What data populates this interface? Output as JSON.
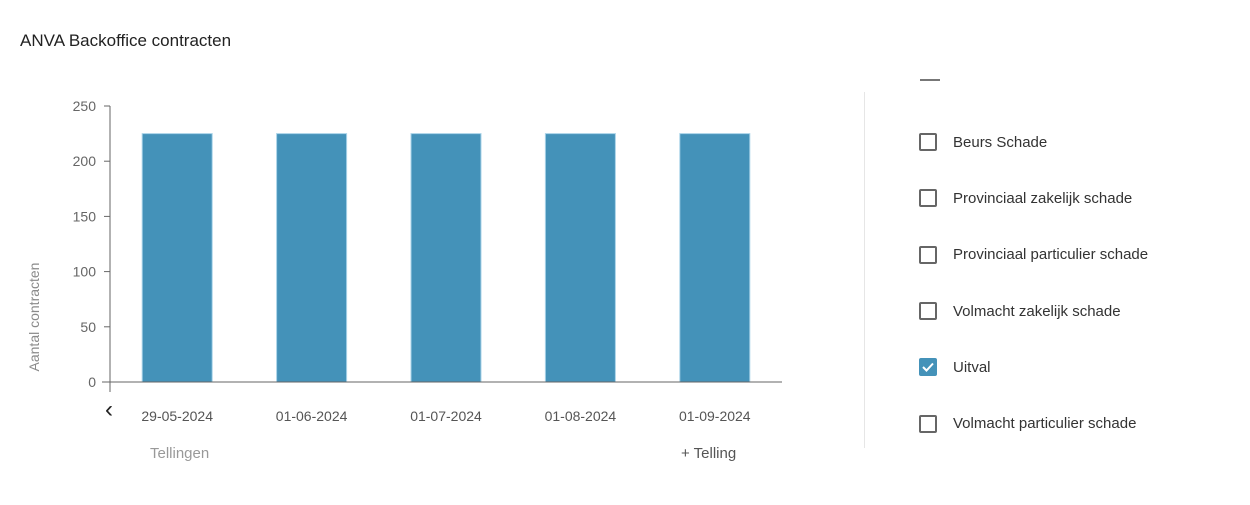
{
  "title": "ANVA Backoffice contracten",
  "chart_data": {
    "type": "bar",
    "categories": [
      "29-05-2024",
      "01-06-2024",
      "01-07-2024",
      "01-08-2024",
      "01-09-2024"
    ],
    "values": [
      225,
      225,
      225,
      225,
      225
    ],
    "xlabel": "Tellingen",
    "ylabel": "Aantal contracten",
    "ylim": [
      0,
      250
    ],
    "yticks": [
      0,
      50,
      100,
      150,
      200,
      250
    ],
    "grid": false,
    "bar_color": "#4492b9"
  },
  "nav": {
    "prev_icon": "chevron-left-icon",
    "add_label": "+ Telling"
  },
  "legend": {
    "items": [
      {
        "label": "Beurs Schade",
        "checked": false
      },
      {
        "label": "Provinciaal zakelijk schade",
        "checked": false
      },
      {
        "label": "Provinciaal particulier schade",
        "checked": false
      },
      {
        "label": "Volmacht zakelijk schade",
        "checked": false
      },
      {
        "label": "Uitval",
        "checked": true
      },
      {
        "label": "Volmacht particulier schade",
        "checked": false
      }
    ]
  }
}
